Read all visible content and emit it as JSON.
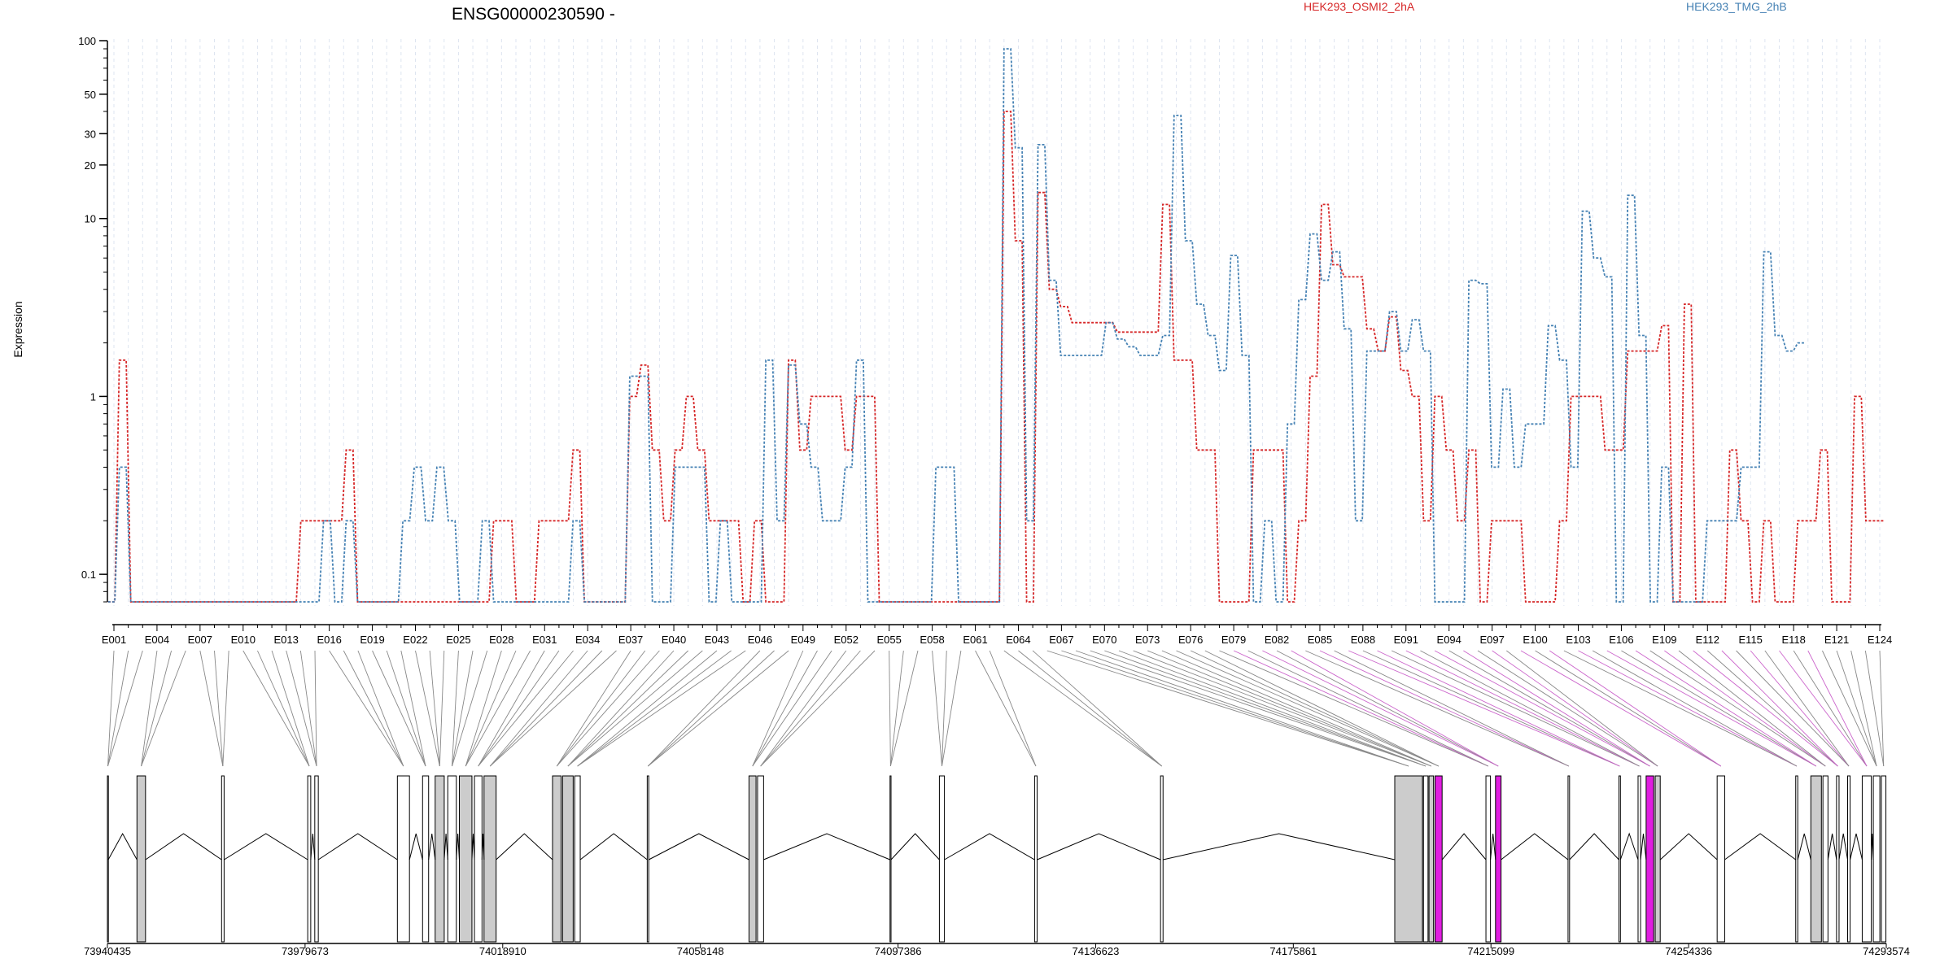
{
  "chart_data": {
    "type": "line",
    "title": "ENSG00000230590 -",
    "ylabel": "Expression",
    "yscale": "log",
    "ylim": [
      0.07,
      100
    ],
    "ytick_labels": [
      "100",
      "50",
      "30",
      "20",
      "10",
      "1",
      "0.1"
    ],
    "ytick_values": [
      100,
      50,
      30,
      20,
      10,
      1,
      0.1
    ],
    "grid": "vertical dashed lines at exon positions",
    "legend": "top-right",
    "series": [
      {
        "name": "HEK293_OSMI2_2hA",
        "color": "#d62728",
        "values": [
          0.07,
          1.6,
          0.07,
          0.07,
          0.07,
          0.07,
          0.07,
          0.07,
          0.07,
          0.07,
          0.07,
          0.07,
          0.07,
          0.07,
          0.07,
          0.07,
          0.07,
          0.2,
          0.2,
          0.2,
          0.2,
          0.5,
          0.07,
          0.07,
          0.07,
          0.07,
          0.07,
          0.07,
          0.07,
          0.07,
          0.07,
          0.07,
          0.07,
          0.07,
          0.2,
          0.2,
          0.07,
          0.07,
          0.2,
          0.2,
          0.2,
          0.5,
          0.07,
          0.07,
          0.07,
          0.07,
          1.0,
          1.5,
          0.5,
          0.2,
          0.5,
          1.0,
          0.5,
          0.2,
          0.2,
          0.2,
          0.07,
          0.2,
          0.07,
          0.07,
          1.6,
          0.5,
          1.0,
          1.0,
          1.0,
          0.5,
          1.0,
          1.0,
          0.07,
          0.07,
          0.07,
          0.07,
          0.07,
          0.07,
          0.07,
          0.07,
          0.07,
          0.07,
          0.07,
          40,
          7.5,
          0.07,
          14,
          4,
          3.2,
          2.6,
          2.6,
          2.6,
          2.6,
          2.3,
          2.3,
          2.3,
          2.3,
          12,
          1.6,
          1.6,
          0.5,
          0.5,
          0.07,
          0.07,
          0.07,
          0.5,
          0.5,
          0.5,
          0.07,
          0.2,
          1.3,
          12,
          5.5,
          4.7,
          4.7,
          2.4,
          1.8,
          2.8,
          1.4,
          1.0,
          0.2,
          1.0,
          0.5,
          0.2,
          0.5,
          0.07,
          0.2,
          0.2,
          0.2,
          0.07,
          0.07,
          0.07,
          0.2,
          1.0,
          1.0,
          1.0,
          0.5,
          0.5,
          1.8,
          1.8,
          1.8,
          2.5,
          0.07,
          3.3,
          0.07,
          0.07,
          0.07,
          0.5,
          0.2,
          0.07,
          0.2,
          0.07,
          0.07,
          0.2,
          0.2,
          0.5,
          0.07,
          0.07,
          1.0,
          0.2,
          0.2
        ]
      },
      {
        "name": "HEK293_TMG_2hB",
        "color": "#4682b4",
        "values": [
          0.07,
          0.4,
          0.07,
          0.07,
          0.07,
          0.07,
          0.07,
          0.07,
          0.07,
          0.07,
          0.07,
          0.07,
          0.07,
          0.07,
          0.07,
          0.07,
          0.07,
          0.07,
          0.07,
          0.2,
          0.07,
          0.2,
          0.07,
          0.07,
          0.07,
          0.07,
          0.2,
          0.4,
          0.2,
          0.4,
          0.2,
          0.07,
          0.07,
          0.2,
          0.07,
          0.07,
          0.07,
          0.07,
          0.07,
          0.07,
          0.07,
          0.2,
          0.07,
          0.07,
          0.07,
          0.07,
          1.3,
          1.3,
          0.07,
          0.07,
          0.4,
          0.4,
          0.4,
          0.07,
          0.2,
          0.07,
          0.07,
          0.07,
          1.6,
          0.2,
          1.5,
          0.7,
          0.4,
          0.2,
          0.2,
          0.4,
          1.6,
          0.07,
          0.07,
          0.07,
          0.07,
          0.07,
          0.07,
          0.4,
          0.4,
          0.07,
          0.07,
          0.07,
          0.07,
          90,
          25,
          0.2,
          26,
          4.5,
          1.7,
          1.7,
          1.7,
          1.7,
          2.6,
          2.1,
          1.9,
          1.7,
          1.7,
          2.2,
          38,
          7.5,
          3.3,
          2.2,
          1.4,
          6.2,
          1.7,
          0.07,
          0.2,
          0.07,
          0.7,
          3.5,
          8.2,
          4.5,
          6.5,
          2.4,
          0.2,
          1.8,
          1.8,
          3.0,
          1.8,
          2.7,
          1.8,
          0.07,
          0.07,
          0.07,
          4.5,
          4.3,
          0.4,
          1.1,
          0.4,
          0.7,
          0.7,
          2.5,
          1.6,
          0.4,
          11,
          6,
          4.7,
          0.07,
          13.5,
          2.2,
          0.07,
          0.4,
          0.07,
          0.07,
          0.07,
          0.2,
          0.2,
          0.2,
          0.4,
          0.4,
          6.5,
          2.2,
          1.8,
          2.0
        ]
      }
    ],
    "exon_tick_labels": [
      "E001",
      "E004",
      "E007",
      "E010",
      "E013",
      "E016",
      "E019",
      "E022",
      "E025",
      "E028",
      "E031",
      "E034",
      "E037",
      "E040",
      "E043",
      "E046",
      "E049",
      "E052",
      "E055",
      "E058",
      "E061",
      "E064",
      "E067",
      "E070",
      "E073",
      "E076",
      "E079",
      "E082",
      "E085",
      "E088",
      "E091",
      "E094",
      "E097",
      "E100",
      "E103",
      "E106",
      "E109",
      "E112",
      "E115",
      "E118",
      "E121",
      "E124"
    ],
    "genomic_tick_labels": [
      "73940435",
      "73979673",
      "74018910",
      "74058148",
      "74097386",
      "74136623",
      "74175861",
      "74215099",
      "74254336",
      "74293574"
    ],
    "genomic_range": [
      73940435,
      74293574
    ],
    "gene_model": {
      "intron_color": "#000000",
      "exon_colors": {
        "default": "#ffffff",
        "constitutive": "#cccccc",
        "highlighted": "#e01ee0"
      },
      "exons": [
        {
          "start": 73940435,
          "end": 73940600,
          "fill": "default"
        },
        {
          "start": 73946300,
          "end": 73948000,
          "fill": "constitutive"
        },
        {
          "start": 73963100,
          "end": 73963600,
          "fill": "default"
        },
        {
          "start": 73980200,
          "end": 73980800,
          "fill": "default"
        },
        {
          "start": 73981600,
          "end": 73982300,
          "fill": "default"
        },
        {
          "start": 73998000,
          "end": 74000400,
          "fill": "default"
        },
        {
          "start": 74003000,
          "end": 74004200,
          "fill": "default"
        },
        {
          "start": 74005500,
          "end": 74007300,
          "fill": "constitutive"
        },
        {
          "start": 74008000,
          "end": 74009700,
          "fill": "default"
        },
        {
          "start": 74010300,
          "end": 74012800,
          "fill": "constitutive"
        },
        {
          "start": 74013300,
          "end": 74014800,
          "fill": "default"
        },
        {
          "start": 74015200,
          "end": 74017600,
          "fill": "constitutive"
        },
        {
          "start": 74028800,
          "end": 74030500,
          "fill": "constitutive"
        },
        {
          "start": 74030800,
          "end": 74032900,
          "fill": "constitutive"
        },
        {
          "start": 74033200,
          "end": 74034300,
          "fill": "default"
        },
        {
          "start": 74047600,
          "end": 74047900,
          "fill": "default"
        },
        {
          "start": 74067800,
          "end": 74069200,
          "fill": "constitutive"
        },
        {
          "start": 74069500,
          "end": 74070700,
          "fill": "default"
        },
        {
          "start": 74095800,
          "end": 74096000,
          "fill": "default"
        },
        {
          "start": 74105600,
          "end": 74106600,
          "fill": "default"
        },
        {
          "start": 74124500,
          "end": 74125000,
          "fill": "default"
        },
        {
          "start": 74149500,
          "end": 74150000,
          "fill": "default"
        },
        {
          "start": 74196000,
          "end": 74201500,
          "fill": "constitutive"
        },
        {
          "start": 74201700,
          "end": 74202600,
          "fill": "default"
        },
        {
          "start": 74202800,
          "end": 74203700,
          "fill": "constitutive"
        },
        {
          "start": 74204000,
          "end": 74205400,
          "fill": "highlighted"
        },
        {
          "start": 74214100,
          "end": 74215000,
          "fill": "default"
        },
        {
          "start": 74216000,
          "end": 74217100,
          "fill": "highlighted"
        },
        {
          "start": 74230400,
          "end": 74230700,
          "fill": "default"
        },
        {
          "start": 74240500,
          "end": 74240800,
          "fill": "default"
        },
        {
          "start": 74244300,
          "end": 74244800,
          "fill": "default"
        },
        {
          "start": 74245900,
          "end": 74247400,
          "fill": "highlighted"
        },
        {
          "start": 74247700,
          "end": 74248700,
          "fill": "constitutive"
        },
        {
          "start": 74260000,
          "end": 74261500,
          "fill": "default"
        },
        {
          "start": 74275600,
          "end": 74276000,
          "fill": "default"
        },
        {
          "start": 74278600,
          "end": 74280700,
          "fill": "constitutive"
        },
        {
          "start": 74281000,
          "end": 74282000,
          "fill": "default"
        },
        {
          "start": 74283700,
          "end": 74284200,
          "fill": "default"
        },
        {
          "start": 74285900,
          "end": 74286400,
          "fill": "default"
        },
        {
          "start": 74288800,
          "end": 74290600,
          "fill": "default"
        },
        {
          "start": 74291000,
          "end": 74292300,
          "fill": "default"
        },
        {
          "start": 74292600,
          "end": 74293500,
          "fill": "default"
        }
      ]
    }
  }
}
